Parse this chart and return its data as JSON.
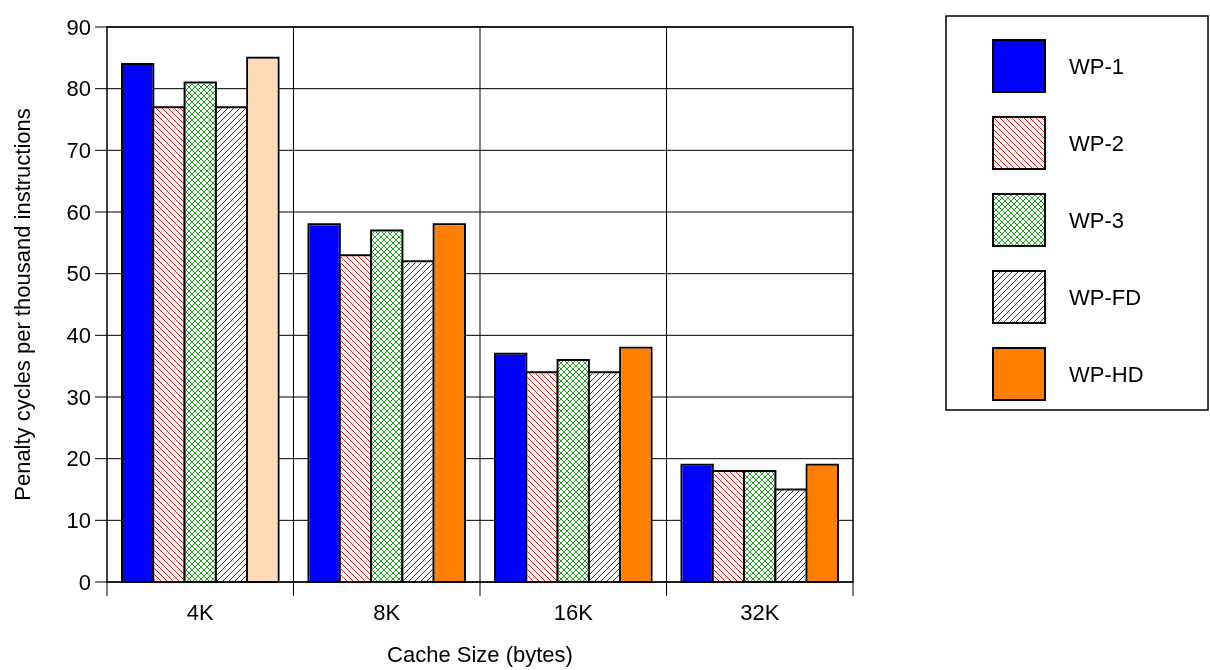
{
  "chart_data": {
    "type": "bar",
    "xlabel": "Cache Size (bytes)",
    "ylabel": "Penalty cycles per thousand instructions",
    "categories": [
      "4K",
      "8K",
      "16K",
      "32K"
    ],
    "series": [
      {
        "name": "WP-1",
        "color": "#0000ff",
        "values": [
          84,
          58,
          37,
          19
        ]
      },
      {
        "name": "WP-2",
        "color": "#ff0000",
        "values": [
          77,
          53,
          34,
          18
        ]
      },
      {
        "name": "WP-3",
        "color": "#00a000",
        "values": [
          81,
          57,
          36,
          18
        ]
      },
      {
        "name": "WP-FD",
        "color": "#0000ff",
        "values": [
          77,
          52,
          34,
          15
        ]
      },
      {
        "name": "WP-HD",
        "color": "#ff8000",
        "colors": [
          "#ffdab9",
          "#ff8000",
          "#ff8000",
          "#ff8000"
        ],
        "values": [
          85,
          58,
          38,
          19
        ]
      }
    ],
    "ylim": [
      0,
      90
    ],
    "yticks": [
      0,
      10,
      20,
      30,
      40,
      50,
      60,
      70,
      80,
      90
    ],
    "grid": true,
    "legend": "top right"
  }
}
